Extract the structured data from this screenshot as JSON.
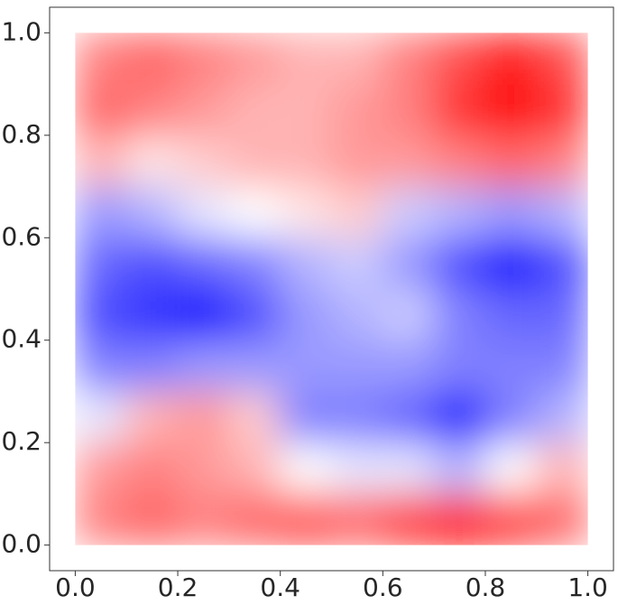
{
  "chart_data": {
    "type": "heatmap",
    "colormap": "bwr",
    "clim": [
      -1,
      1
    ],
    "x": [
      0.05,
      0.15,
      0.25,
      0.35,
      0.45,
      0.55,
      0.65,
      0.75,
      0.85,
      0.95
    ],
    "y": [
      0.05,
      0.15,
      0.25,
      0.35,
      0.45,
      0.55,
      0.65,
      0.75,
      0.85,
      0.95
    ],
    "z": [
      [
        0.5,
        0.6,
        0.5,
        0.6,
        0.7,
        0.6,
        0.8,
        1.0,
        0.8,
        0.6
      ],
      [
        0.4,
        0.5,
        0.4,
        0.3,
        0.0,
        -0.1,
        -0.1,
        -0.3,
        0.0,
        0.3
      ],
      [
        -0.1,
        0.3,
        0.4,
        0.2,
        -0.5,
        -0.5,
        -0.6,
        -0.9,
        -0.5,
        -0.3
      ],
      [
        -0.5,
        -0.5,
        -0.4,
        -0.4,
        -0.4,
        -0.4,
        -0.4,
        -0.5,
        -0.5,
        -0.5
      ],
      [
        -0.7,
        -0.8,
        -1.0,
        -0.7,
        -0.4,
        -0.3,
        -0.2,
        -0.5,
        -0.6,
        -0.6
      ],
      [
        -0.6,
        -0.7,
        -0.6,
        -0.5,
        -0.3,
        -0.2,
        -0.4,
        -0.7,
        -1.0,
        -0.7
      ],
      [
        -0.4,
        -0.3,
        -0.1,
        0.0,
        0.1,
        0.2,
        -0.2,
        -0.3,
        -0.4,
        -0.3
      ],
      [
        0.3,
        0.1,
        0.2,
        0.3,
        0.3,
        0.4,
        0.4,
        0.5,
        0.6,
        0.5
      ],
      [
        0.6,
        0.5,
        0.4,
        0.3,
        0.3,
        0.4,
        0.5,
        0.8,
        1.0,
        0.8
      ],
      [
        0.5,
        0.6,
        0.5,
        0.4,
        0.3,
        0.3,
        0.5,
        0.7,
        0.9,
        0.7
      ]
    ],
    "xlim": [
      -0.05,
      1.05
    ],
    "ylim": [
      -0.05,
      1.05
    ],
    "xticks": [
      {
        "value": 0,
        "label": "0.0"
      },
      0.2,
      0.4,
      0.6,
      0.8,
      {
        "value": 1,
        "label": "1.0"
      }
    ],
    "yticks": [
      {
        "value": 0,
        "label": "0.0"
      },
      0.2,
      0.4,
      0.6,
      0.8,
      {
        "value": 1,
        "label": "1.0"
      }
    ]
  }
}
